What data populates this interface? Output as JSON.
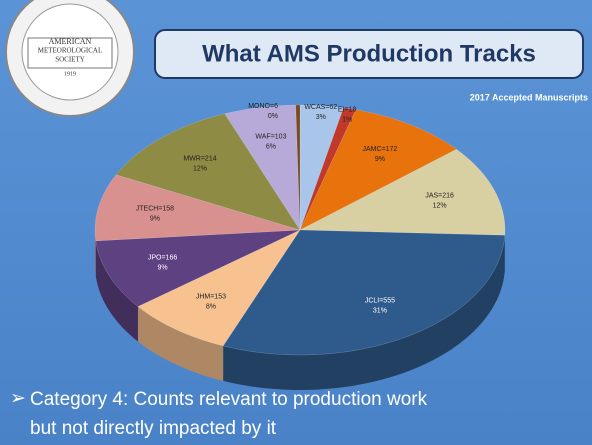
{
  "logo": {
    "lines": [
      "AMERICAN",
      "METEOROLOGICAL",
      "SOCIETY",
      "1919"
    ]
  },
  "title": "What AMS Production Tracks",
  "bullet": [
    "Category 4: Counts relevant to production work",
    "but not directly impacted by it"
  ],
  "chart_data": {
    "type": "pie3d",
    "title": "2017 Accepted Manuscripts",
    "categories": [
      "WCAS",
      "EI",
      "JAMC",
      "JAS",
      "JCLI",
      "JHM",
      "JPO",
      "JTECH",
      "MWR",
      "WAF",
      "MONO"
    ],
    "values": [
      62,
      18,
      172,
      216,
      555,
      153,
      166,
      158,
      214,
      103,
      6
    ],
    "value_labels": [
      "WCAS=62",
      "EI=18",
      "JAMC=172",
      "JAS=216",
      "JCLI=555",
      "JHM=153",
      "JPO=166",
      "JTECH=158",
      "MWR=214",
      "WAF=103",
      "MONO=6"
    ],
    "percent_labels": [
      "3%",
      "1%",
      "9%",
      "12%",
      "31%",
      "8%",
      "9%",
      "9%",
      "12%",
      "6%",
      "0%"
    ],
    "colors": [
      "#a9c6ea",
      "#c0392b",
      "#e8720c",
      "#d8cfa2",
      "#2f5b8c",
      "#f8c290",
      "#5e4180",
      "#d9918f",
      "#8e8b45",
      "#b7aad8",
      "#7b4a1e"
    ]
  }
}
